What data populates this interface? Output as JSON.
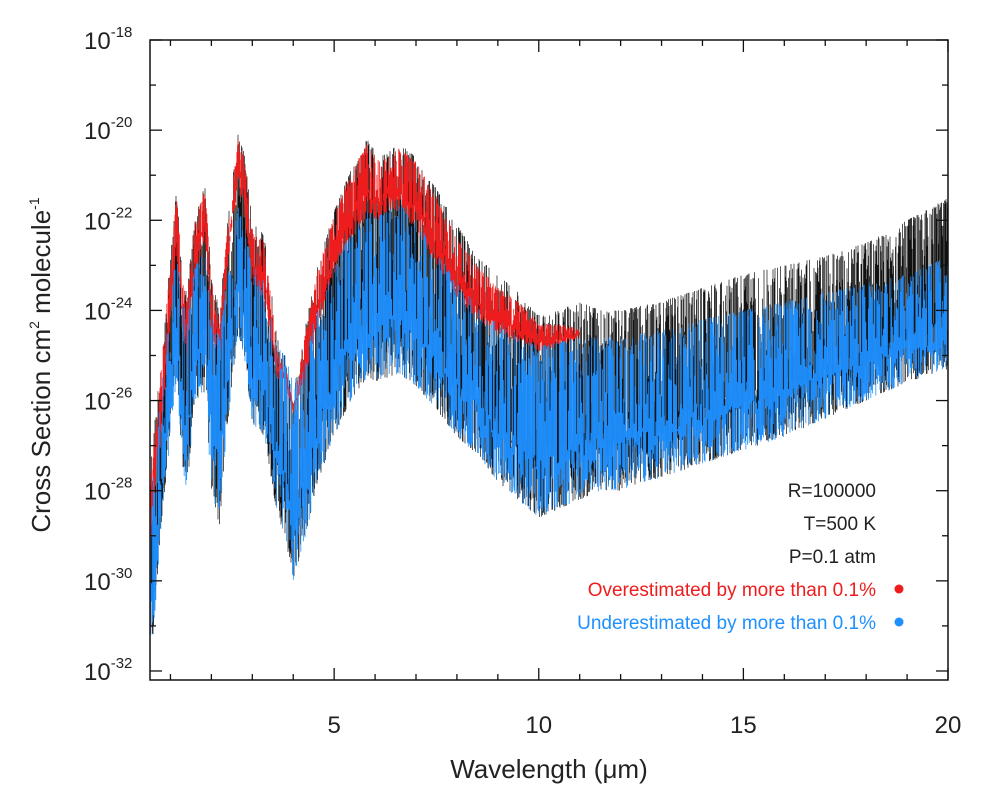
{
  "chart_data": {
    "type": "line",
    "title": "",
    "xlabel": "Wavelength (μm)",
    "ylabel": {
      "text_a": "Cross Section cm",
      "sup_a": "2",
      "text_b": " molecule",
      "sup_b": "-1"
    },
    "xlim": [
      0.5,
      20
    ],
    "ylim_log10": [
      -32.2,
      -18
    ],
    "x_ticks": [
      {
        "value": 5,
        "label": "5"
      },
      {
        "value": 10,
        "label": "10"
      },
      {
        "value": 15,
        "label": "15"
      },
      {
        "value": 20,
        "label": "20"
      }
    ],
    "y_ticks": [
      {
        "exp": -18,
        "base": "10",
        "sup": "-18"
      },
      {
        "exp": -20,
        "base": "10",
        "sup": "-20"
      },
      {
        "exp": -22,
        "base": "10",
        "sup": "-22"
      },
      {
        "exp": -24,
        "base": "10",
        "sup": "-24"
      },
      {
        "exp": -26,
        "base": "10",
        "sup": "-26"
      },
      {
        "exp": -28,
        "base": "10",
        "sup": "-28"
      },
      {
        "exp": -30,
        "base": "10",
        "sup": "-30"
      },
      {
        "exp": -32,
        "base": "10",
        "sup": "-32"
      }
    ],
    "annotations": [
      {
        "key": "resolution",
        "text": "R=100000",
        "color": "#222222"
      },
      {
        "key": "temperature",
        "text": "T=500 K",
        "color": "#222222"
      },
      {
        "key": "pressure",
        "text": "P=0.1 atm",
        "color": "#222222"
      }
    ],
    "legend": {
      "placement": "bottom-right",
      "entries": [
        {
          "name": "Overestimated by more than 0.1%",
          "color": "#ee1c1c",
          "marker": "dot"
        },
        {
          "name": "Underestimated by more than 0.1%",
          "color": "#1e90ff",
          "marker": "dot"
        }
      ]
    },
    "series": [
      {
        "name": "Cross section (black)",
        "color": "#111111",
        "x": [
          0.5,
          0.8,
          1.15,
          1.3,
          1.4,
          1.6,
          1.85,
          2.0,
          2.2,
          2.4,
          2.65,
          2.8,
          3.0,
          3.3,
          3.6,
          3.8,
          4.0,
          4.3,
          4.6,
          5.0,
          5.4,
          5.8,
          6.1,
          6.3,
          6.6,
          7.0,
          7.5,
          8.0,
          8.5,
          9.0,
          9.5,
          10.0,
          10.5,
          11.0,
          11.5,
          12.0,
          13.0,
          14.0,
          15.0,
          16.0,
          17.0,
          18.0,
          19.0,
          20.0
        ],
        "log_upper": [
          -27.5,
          -24.8,
          -21.3,
          -23.3,
          -23.6,
          -21.9,
          -21.2,
          -23.2,
          -24.0,
          -22.0,
          -20.1,
          -20.5,
          -22.0,
          -22.3,
          -24.6,
          -25.0,
          -25.9,
          -24.3,
          -23.0,
          -21.8,
          -20.9,
          -20.2,
          -20.6,
          -20.5,
          -20.3,
          -20.6,
          -21.3,
          -22.1,
          -22.8,
          -23.2,
          -23.6,
          -24.1,
          -24.0,
          -23.8,
          -24.0,
          -24.0,
          -23.8,
          -23.5,
          -23.2,
          -23.0,
          -22.8,
          -22.5,
          -22.0,
          -21.5
        ],
        "log_lower": [
          -32.2,
          -28.5,
          -25.5,
          -27.5,
          -28.0,
          -26.0,
          -25.8,
          -28.0,
          -28.8,
          -26.5,
          -24.5,
          -25.0,
          -26.5,
          -26.8,
          -28.5,
          -29.0,
          -30.0,
          -29.0,
          -27.8,
          -26.8,
          -26.0,
          -25.5,
          -25.6,
          -25.5,
          -25.4,
          -25.7,
          -26.2,
          -26.8,
          -27.2,
          -27.8,
          -28.2,
          -28.6,
          -28.4,
          -28.2,
          -28.0,
          -28.0,
          -27.7,
          -27.4,
          -27.1,
          -26.8,
          -26.4,
          -26.0,
          -25.6,
          -25.3
        ]
      },
      {
        "name": "Overestimated by more than 0.1%",
        "color": "#ee1c1c",
        "x": [
          0.5,
          0.8,
          1.15,
          1.3,
          1.4,
          1.6,
          1.85,
          2.0,
          2.2,
          2.4,
          2.65,
          2.8,
          3.0,
          3.3,
          3.6,
          3.8,
          4.0,
          4.3,
          4.6,
          5.0,
          5.4,
          5.8,
          6.1,
          6.3,
          6.6,
          7.0,
          7.5,
          8.0,
          8.5,
          9.0,
          9.5,
          10.0,
          10.5,
          11.0
        ],
        "log_upper": [
          -27.8,
          -25.0,
          -21.4,
          -23.4,
          -23.8,
          -22.0,
          -21.3,
          -23.3,
          -24.2,
          -22.1,
          -20.2,
          -20.6,
          -22.2,
          -22.5,
          -24.8,
          -25.2,
          -26.1,
          -24.5,
          -23.1,
          -21.9,
          -21.0,
          -20.3,
          -20.7,
          -20.6,
          -20.4,
          -20.7,
          -21.5,
          -22.4,
          -23.0,
          -23.5,
          -23.8,
          -24.3,
          -24.3,
          -24.4
        ],
        "log_lower": [
          -29.5,
          -26.5,
          -22.8,
          -24.5,
          -25.0,
          -23.2,
          -22.4,
          -24.5,
          -25.2,
          -23.0,
          -21.2,
          -21.8,
          -23.4,
          -23.8,
          -25.5,
          -25.6,
          -26.3,
          -25.5,
          -24.3,
          -23.2,
          -22.4,
          -21.9,
          -22.0,
          -21.8,
          -21.8,
          -22.2,
          -23.0,
          -23.7,
          -24.2,
          -24.5,
          -24.7,
          -24.9,
          -24.8,
          -24.6
        ]
      },
      {
        "name": "Underestimated by more than 0.1%",
        "color": "#1e90ff",
        "x": [
          0.5,
          0.8,
          1.15,
          1.3,
          1.4,
          1.6,
          1.85,
          2.0,
          2.2,
          2.4,
          2.65,
          2.8,
          3.0,
          3.3,
          3.6,
          3.8,
          4.0,
          4.3,
          4.6,
          5.0,
          5.4,
          5.8,
          6.1,
          6.3,
          6.6,
          7.0,
          7.5,
          8.0,
          8.5,
          9.0,
          9.5,
          10.0,
          10.5,
          11.0,
          11.5,
          12.0,
          13.0,
          14.0,
          15.0,
          16.0,
          17.0,
          18.0,
          19.0,
          20.0
        ],
        "log_upper": [
          -28.5,
          -25.5,
          -22.6,
          -23.8,
          -24.2,
          -23.0,
          -22.7,
          -24.0,
          -24.6,
          -23.2,
          -21.7,
          -22.0,
          -23.0,
          -23.3,
          -24.8,
          -25.0,
          -25.6,
          -24.8,
          -24.0,
          -23.0,
          -22.3,
          -21.8,
          -21.9,
          -21.8,
          -21.6,
          -22.0,
          -22.7,
          -23.4,
          -23.9,
          -24.3,
          -24.6,
          -24.8,
          -24.7,
          -24.6,
          -24.6,
          -24.6,
          -24.4,
          -24.2,
          -24.0,
          -23.8,
          -23.6,
          -23.4,
          -23.2,
          -22.8
        ],
        "log_lower": [
          -32.2,
          -28.5,
          -25.5,
          -27.5,
          -28.0,
          -26.0,
          -25.8,
          -28.0,
          -28.8,
          -26.5,
          -24.5,
          -25.0,
          -26.5,
          -26.8,
          -28.5,
          -29.0,
          -30.0,
          -29.0,
          -27.8,
          -26.8,
          -26.0,
          -25.5,
          -25.6,
          -25.5,
          -25.4,
          -25.7,
          -26.2,
          -26.8,
          -27.2,
          -27.8,
          -28.2,
          -28.6,
          -28.4,
          -28.2,
          -28.0,
          -28.0,
          -27.7,
          -27.4,
          -27.1,
          -26.8,
          -26.4,
          -26.0,
          -25.6,
          -25.3
        ]
      }
    ]
  }
}
